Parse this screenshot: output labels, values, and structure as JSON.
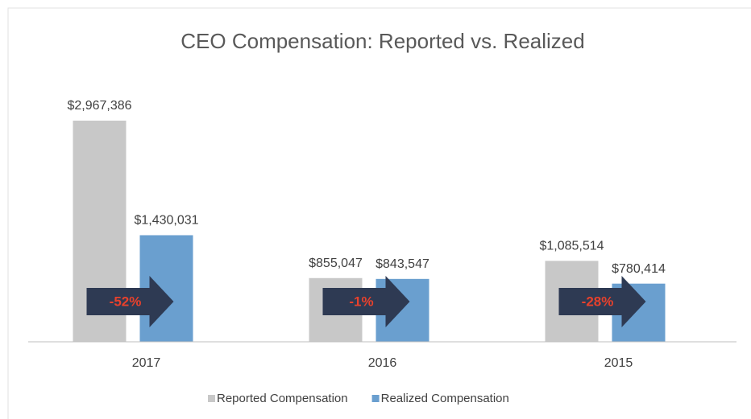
{
  "chart_data": {
    "type": "bar",
    "title": "CEO Compensation:  Reported vs. Realized",
    "categories": [
      "2017",
      "2016",
      "2015"
    ],
    "series": [
      {
        "name": "Reported Compensation",
        "color": "#c8c8c8",
        "values": [
          2967386,
          855047,
          1085514
        ],
        "value_labels": [
          "$2,967,386",
          "$855,047",
          "$1,085,514"
        ]
      },
      {
        "name": "Realized Compensation",
        "color": "#6a9fcf",
        "values": [
          1430031,
          843547,
          780414
        ],
        "value_labels": [
          "$1,430,031",
          "$843,547",
          "$780,414"
        ]
      }
    ],
    "annotations": [
      "-52%",
      "-1%",
      "-28%"
    ],
    "annotation_color": "#e8412c",
    "arrow_color": "#2e3a53"
  }
}
